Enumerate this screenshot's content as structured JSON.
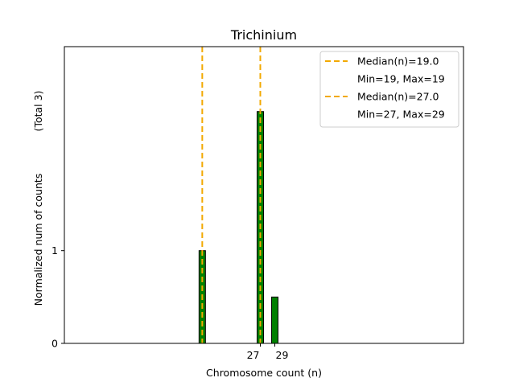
{
  "chart_data": {
    "type": "bar",
    "title": "Trichinium",
    "xlabel": "Chromosome count (n)",
    "ylabel": "Normalized num of counts",
    "ylabel_note": "(Total 3)",
    "x_ticks": [
      {
        "label": "27",
        "value": 27
      },
      {
        "label": "29",
        "value": 29
      }
    ],
    "y_ticks": [
      {
        "label": "0",
        "value": 0
      },
      {
        "label": "1",
        "value": 1
      }
    ],
    "xlim": [
      0,
      55
    ],
    "ylim": [
      0,
      3.2
    ],
    "series": [
      {
        "color": "#008000",
        "edge_color": "#000000",
        "bars": [
          {
            "x": 19,
            "value": 1.0
          },
          {
            "x": 27,
            "value": 2.5
          },
          {
            "x": 29,
            "value": 0.5
          }
        ]
      }
    ],
    "median_lines": [
      {
        "x": 19,
        "color": "#f2a900"
      },
      {
        "x": 27,
        "color": "#f2a900"
      }
    ],
    "legend": {
      "placement": "top-right",
      "entries": [
        {
          "text": "Median(n)=19.0",
          "line": true,
          "color": "#f2a900"
        },
        {
          "text": "Min=19, Max=19",
          "line": false
        },
        {
          "text": "Median(n)=27.0",
          "line": true,
          "color": "#f2a900"
        },
        {
          "text": "Min=27, Max=29",
          "line": false
        }
      ]
    }
  }
}
